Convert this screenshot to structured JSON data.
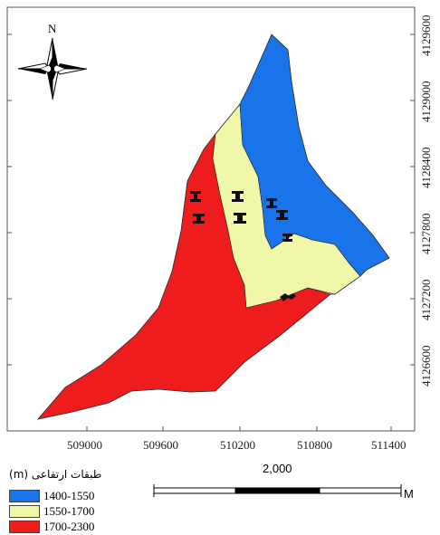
{
  "map": {
    "north_label": "N",
    "x_ticks": [
      "509000",
      "509600",
      "510200",
      "510800",
      "511400"
    ],
    "y_ticks": [
      "4129600",
      "4129000",
      "4128400",
      "4127800",
      "4127200",
      "4126600"
    ]
  },
  "zones": [
    {
      "name": "zone-1400-1550",
      "color": "#1874e8"
    },
    {
      "name": "zone-1550-1700",
      "color": "#f0f7a8"
    },
    {
      "name": "zone-1700-2300",
      "color": "#ee1c1c"
    }
  ],
  "legend": {
    "title": "طبقات ارتفاعی (m)",
    "items": [
      {
        "label": "1400-1550",
        "color": "#1874e8"
      },
      {
        "label": "1550-1700",
        "color": "#f0f7a8"
      },
      {
        "label": "1700-2300",
        "color": "#ee1c1c"
      }
    ]
  },
  "scale_bar": {
    "label": "2,000",
    "unit": "M"
  }
}
